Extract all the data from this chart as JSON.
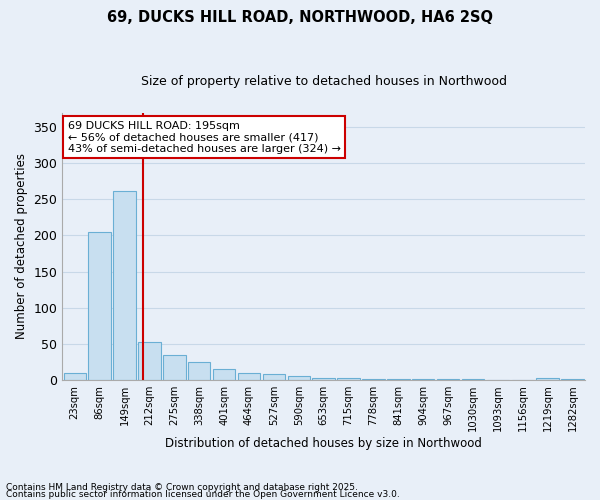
{
  "title": "69, DUCKS HILL ROAD, NORTHWOOD, HA6 2SQ",
  "subtitle": "Size of property relative to detached houses in Northwood",
  "xlabel": "Distribution of detached houses by size in Northwood",
  "ylabel": "Number of detached properties",
  "bin_labels": [
    "23sqm",
    "86sqm",
    "149sqm",
    "212sqm",
    "275sqm",
    "338sqm",
    "401sqm",
    "464sqm",
    "527sqm",
    "590sqm",
    "653sqm",
    "715sqm",
    "778sqm",
    "841sqm",
    "904sqm",
    "967sqm",
    "1030sqm",
    "1093sqm",
    "1156sqm",
    "1219sqm",
    "1282sqm"
  ],
  "bar_values": [
    10,
    205,
    262,
    52,
    35,
    25,
    15,
    10,
    8,
    5,
    3,
    2,
    1,
    1,
    1,
    1,
    1,
    0,
    0,
    3,
    1
  ],
  "bar_color": "#c8dff0",
  "bar_edge_color": "#6aafd4",
  "grid_color": "#c8d8e8",
  "background_color": "#e8eff8",
  "vline_color": "#cc0000",
  "annotation_text": "69 DUCKS HILL ROAD: 195sqm\n← 56% of detached houses are smaller (417)\n43% of semi-detached houses are larger (324) →",
  "annotation_box_color": "#ffffff",
  "annotation_box_edge": "#cc0000",
  "ylim": [
    0,
    370
  ],
  "yticks": [
    0,
    50,
    100,
    150,
    200,
    250,
    300,
    350
  ],
  "footer1": "Contains HM Land Registry data © Crown copyright and database right 2025.",
  "footer2": "Contains public sector information licensed under the Open Government Licence v3.0."
}
